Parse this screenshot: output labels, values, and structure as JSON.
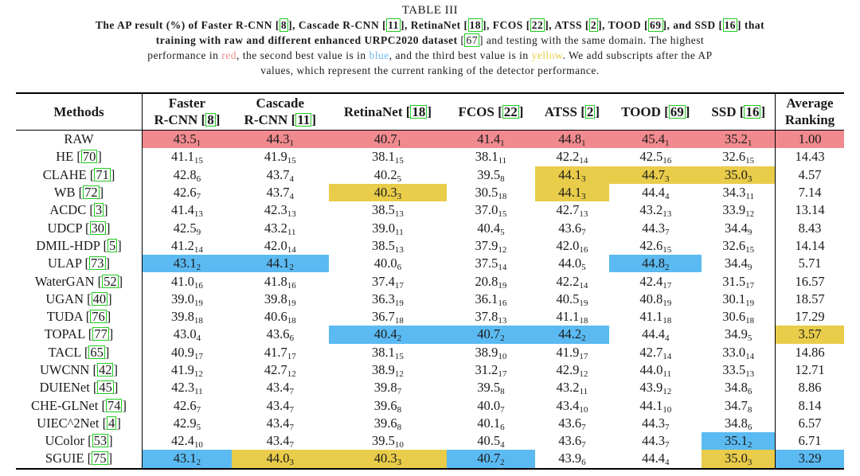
{
  "caption": {
    "title": "TABLE III",
    "line1_a": "The AP result (%) of Faster R-CNN [",
    "line1_parts": [
      {
        "text": "The AP result (%) of Faster R-CNN ",
        "cite": "8"
      },
      {
        "text": ", Cascade R-CNN ",
        "cite": "11"
      },
      {
        "text": ", RetinaNet ",
        "cite": "18"
      },
      {
        "text": ", FCOS ",
        "cite": "22"
      },
      {
        "text": ", ATSS ",
        "cite": "2"
      },
      {
        "text": ", TOOD ",
        "cite": "69"
      },
      {
        "text": ", and SSD ",
        "cite": "16"
      },
      {
        "text": " that",
        "cite": null
      }
    ],
    "line2_parts": [
      {
        "text": "training with raw and different enhanced URPC2020 dataset ",
        "cite": "67"
      },
      {
        "text": " and testing with the same domain. The highest",
        "cite": null
      }
    ],
    "line3_pre": "performance in ",
    "red_word": "red",
    "line3_mid1": ", the second best value is in ",
    "blue_word": "blue",
    "line3_mid2": ", and the third best value is in ",
    "yellow_word": "yellow",
    "line3_post": ". We add subscripts after the AP",
    "line4": "values, which represent the current ranking of the detector performance."
  },
  "colors": {
    "red": "#f08a8f",
    "blue": "#5bbaf2",
    "yellow": "#e8cc4a",
    "cite_box": "#22cc22"
  },
  "headers": [
    {
      "l1": "Methods",
      "l2": "",
      "cite": null
    },
    {
      "l1": "Faster",
      "l2": "R-CNN ",
      "cite": "8"
    },
    {
      "l1": "Cascade",
      "l2": "R-CNN ",
      "cite": "11"
    },
    {
      "l1": "RetinaNet ",
      "l2": "",
      "cite": "18"
    },
    {
      "l1": "FCOS ",
      "l2": "",
      "cite": "22"
    },
    {
      "l1": "ATSS ",
      "l2": "",
      "cite": "2"
    },
    {
      "l1": "TOOD ",
      "l2": "",
      "cite": "69"
    },
    {
      "l1": "SSD ",
      "l2": "",
      "cite": "16"
    },
    {
      "l1": "Average",
      "l2": "Ranking",
      "cite": null
    }
  ],
  "rows": [
    {
      "method": "RAW",
      "cite": null,
      "cells": [
        [
          "43.5",
          "1",
          "red"
        ],
        [
          "44.3",
          "1",
          "red"
        ],
        [
          "40.7",
          "1",
          "red"
        ],
        [
          "41.4",
          "1",
          "red"
        ],
        [
          "44.8",
          "1",
          "red"
        ],
        [
          "45.4",
          "1",
          "red"
        ],
        [
          "35.2",
          "1",
          "red"
        ]
      ],
      "avg": "1.00",
      "avg_hl": "red"
    },
    {
      "method": "HE ",
      "cite": "70",
      "cells": [
        [
          "41.1",
          "15",
          ""
        ],
        [
          "41.9",
          "15",
          ""
        ],
        [
          "38.1",
          "15",
          ""
        ],
        [
          "38.1",
          "11",
          ""
        ],
        [
          "42.2",
          "14",
          ""
        ],
        [
          "42.5",
          "16",
          ""
        ],
        [
          "32.6",
          "15",
          ""
        ]
      ],
      "avg": "14.43",
      "avg_hl": ""
    },
    {
      "method": "CLAHE ",
      "cite": "71",
      "cells": [
        [
          "42.8",
          "6",
          ""
        ],
        [
          "43.7",
          "4",
          ""
        ],
        [
          "40.2",
          "5",
          ""
        ],
        [
          "39.5",
          "8",
          ""
        ],
        [
          "44.1",
          "3",
          "yellow"
        ],
        [
          "44.7",
          "3",
          "yellow"
        ],
        [
          "35.0",
          "3",
          "yellow"
        ]
      ],
      "avg": "4.57",
      "avg_hl": ""
    },
    {
      "method": "WB ",
      "cite": "72",
      "cells": [
        [
          "42.6",
          "7",
          ""
        ],
        [
          "43.7",
          "4",
          ""
        ],
        [
          "40.3",
          "3",
          "yellow"
        ],
        [
          "30.5",
          "18",
          ""
        ],
        [
          "44.1",
          "3",
          "yellow"
        ],
        [
          "44.4",
          "4",
          ""
        ],
        [
          "34.3",
          "11",
          ""
        ]
      ],
      "avg": "7.14",
      "avg_hl": ""
    },
    {
      "method": "ACDC ",
      "cite": "3",
      "cells": [
        [
          "41.4",
          "13",
          ""
        ],
        [
          "42.3",
          "13",
          ""
        ],
        [
          "38.5",
          "13",
          ""
        ],
        [
          "37.0",
          "15",
          ""
        ],
        [
          "42.7",
          "13",
          ""
        ],
        [
          "43.2",
          "13",
          ""
        ],
        [
          "33.9",
          "12",
          ""
        ]
      ],
      "avg": "13.14",
      "avg_hl": ""
    },
    {
      "method": "UDCP ",
      "cite": "30",
      "cells": [
        [
          "42.5",
          "9",
          ""
        ],
        [
          "43.2",
          "11",
          ""
        ],
        [
          "39.0",
          "11",
          ""
        ],
        [
          "40.4",
          "5",
          ""
        ],
        [
          "43.6",
          "7",
          ""
        ],
        [
          "44.3",
          "7",
          ""
        ],
        [
          "34.4",
          "9",
          ""
        ]
      ],
      "avg": "8.43",
      "avg_hl": ""
    },
    {
      "method": "DMIL-HDP ",
      "cite": "5",
      "cells": [
        [
          "41.2",
          "14",
          ""
        ],
        [
          "42.0",
          "14",
          ""
        ],
        [
          "38.5",
          "13",
          ""
        ],
        [
          "37.9",
          "12",
          ""
        ],
        [
          "42.0",
          "16",
          ""
        ],
        [
          "42.6",
          "15",
          ""
        ],
        [
          "32.6",
          "15",
          ""
        ]
      ],
      "avg": "14.14",
      "avg_hl": ""
    },
    {
      "method": "ULAP ",
      "cite": "73",
      "cells": [
        [
          "43.1",
          "2",
          "blue"
        ],
        [
          "44.1",
          "2",
          "blue"
        ],
        [
          "40.0",
          "6",
          ""
        ],
        [
          "37.5",
          "14",
          ""
        ],
        [
          "44.0",
          "5",
          ""
        ],
        [
          "44.8",
          "2",
          "blue"
        ],
        [
          "34.4",
          "9",
          ""
        ]
      ],
      "avg": "5.71",
      "avg_hl": ""
    },
    {
      "method": "WaterGAN ",
      "cite": "52",
      "cells": [
        [
          "41.0",
          "16",
          ""
        ],
        [
          "41.8",
          "16",
          ""
        ],
        [
          "37.4",
          "17",
          ""
        ],
        [
          "20.8",
          "19",
          ""
        ],
        [
          "42.2",
          "14",
          ""
        ],
        [
          "42.4",
          "17",
          ""
        ],
        [
          "31.5",
          "17",
          ""
        ]
      ],
      "avg": "16.57",
      "avg_hl": ""
    },
    {
      "method": "UGAN ",
      "cite": "40",
      "cells": [
        [
          "39.0",
          "19",
          ""
        ],
        [
          "39.8",
          "19",
          ""
        ],
        [
          "36.3",
          "19",
          ""
        ],
        [
          "36.1",
          "16",
          ""
        ],
        [
          "40.5",
          "19",
          ""
        ],
        [
          "40.8",
          "19",
          ""
        ],
        [
          "30.1",
          "19",
          ""
        ]
      ],
      "avg": "18.57",
      "avg_hl": ""
    },
    {
      "method": "TUDA ",
      "cite": "76",
      "cells": [
        [
          "39.8",
          "18",
          ""
        ],
        [
          "40.6",
          "18",
          ""
        ],
        [
          "36.7",
          "18",
          ""
        ],
        [
          "37.8",
          "13",
          ""
        ],
        [
          "41.1",
          "18",
          ""
        ],
        [
          "41.1",
          "18",
          ""
        ],
        [
          "30.6",
          "18",
          ""
        ]
      ],
      "avg": "17.29",
      "avg_hl": ""
    },
    {
      "method": "TOPAL ",
      "cite": "77",
      "cells": [
        [
          "43.0",
          "4",
          ""
        ],
        [
          "43.6",
          "6",
          ""
        ],
        [
          "40.4",
          "2",
          "blue"
        ],
        [
          "40.7",
          "2",
          "blue"
        ],
        [
          "44.2",
          "2",
          "blue"
        ],
        [
          "44.4",
          "4",
          ""
        ],
        [
          "34.9",
          "5",
          ""
        ]
      ],
      "avg": "3.57",
      "avg_hl": "yellow"
    },
    {
      "method": "TACL ",
      "cite": "65",
      "cells": [
        [
          "40.9",
          "17",
          ""
        ],
        [
          "41.7",
          "17",
          ""
        ],
        [
          "38.1",
          "15",
          ""
        ],
        [
          "38.9",
          "10",
          ""
        ],
        [
          "41.9",
          "17",
          ""
        ],
        [
          "42.7",
          "14",
          ""
        ],
        [
          "33.0",
          "14",
          ""
        ]
      ],
      "avg": "14.86",
      "avg_hl": ""
    },
    {
      "method": "UWCNN ",
      "cite": "42",
      "cells": [
        [
          "41.9",
          "12",
          ""
        ],
        [
          "42.7",
          "12",
          ""
        ],
        [
          "38.9",
          "12",
          ""
        ],
        [
          "31.2",
          "17",
          ""
        ],
        [
          "42.9",
          "12",
          ""
        ],
        [
          "44.0",
          "11",
          ""
        ],
        [
          "33.5",
          "13",
          ""
        ]
      ],
      "avg": "12.71",
      "avg_hl": ""
    },
    {
      "method": "DUIENet ",
      "cite": "45",
      "cells": [
        [
          "42.3",
          "11",
          ""
        ],
        [
          "43.4",
          "7",
          ""
        ],
        [
          "39.8",
          "7",
          ""
        ],
        [
          "39.5",
          "8",
          ""
        ],
        [
          "43.2",
          "11",
          ""
        ],
        [
          "43.9",
          "12",
          ""
        ],
        [
          "34.8",
          "6",
          ""
        ]
      ],
      "avg": "8.86",
      "avg_hl": ""
    },
    {
      "method": "CHE-GLNet ",
      "cite": "74",
      "cells": [
        [
          "42.6",
          "7",
          ""
        ],
        [
          "43.4",
          "7",
          ""
        ],
        [
          "39.6",
          "8",
          ""
        ],
        [
          "40.0",
          "7",
          ""
        ],
        [
          "43.4",
          "10",
          ""
        ],
        [
          "44.1",
          "10",
          ""
        ],
        [
          "34.7",
          "8",
          ""
        ]
      ],
      "avg": "8.14",
      "avg_hl": ""
    },
    {
      "method": "UIEC^2Net ",
      "cite": "4",
      "cells": [
        [
          "42.9",
          "5",
          ""
        ],
        [
          "43.4",
          "7",
          ""
        ],
        [
          "39.6",
          "8",
          ""
        ],
        [
          "40.1",
          "6",
          ""
        ],
        [
          "43.6",
          "7",
          ""
        ],
        [
          "44.3",
          "7",
          ""
        ],
        [
          "34.8",
          "6",
          ""
        ]
      ],
      "avg": "6.57",
      "avg_hl": ""
    },
    {
      "method": "UColor ",
      "cite": "53",
      "cells": [
        [
          "42.4",
          "10",
          ""
        ],
        [
          "43.4",
          "7",
          ""
        ],
        [
          "39.5",
          "10",
          ""
        ],
        [
          "40.5",
          "4",
          ""
        ],
        [
          "43.6",
          "7",
          ""
        ],
        [
          "44.3",
          "7",
          ""
        ],
        [
          "35.1",
          "2",
          "blue"
        ]
      ],
      "avg": "6.71",
      "avg_hl": ""
    },
    {
      "method": "SGUIE ",
      "cite": "75",
      "cells": [
        [
          "43.1",
          "2",
          "blue"
        ],
        [
          "44.0",
          "3",
          "yellow"
        ],
        [
          "40.3",
          "3",
          "yellow"
        ],
        [
          "40.7",
          "2",
          "blue"
        ],
        [
          "43.9",
          "6",
          ""
        ],
        [
          "44.4",
          "4",
          ""
        ],
        [
          "35.0",
          "3",
          "yellow"
        ]
      ],
      "avg": "3.29",
      "avg_hl": "blue"
    }
  ]
}
